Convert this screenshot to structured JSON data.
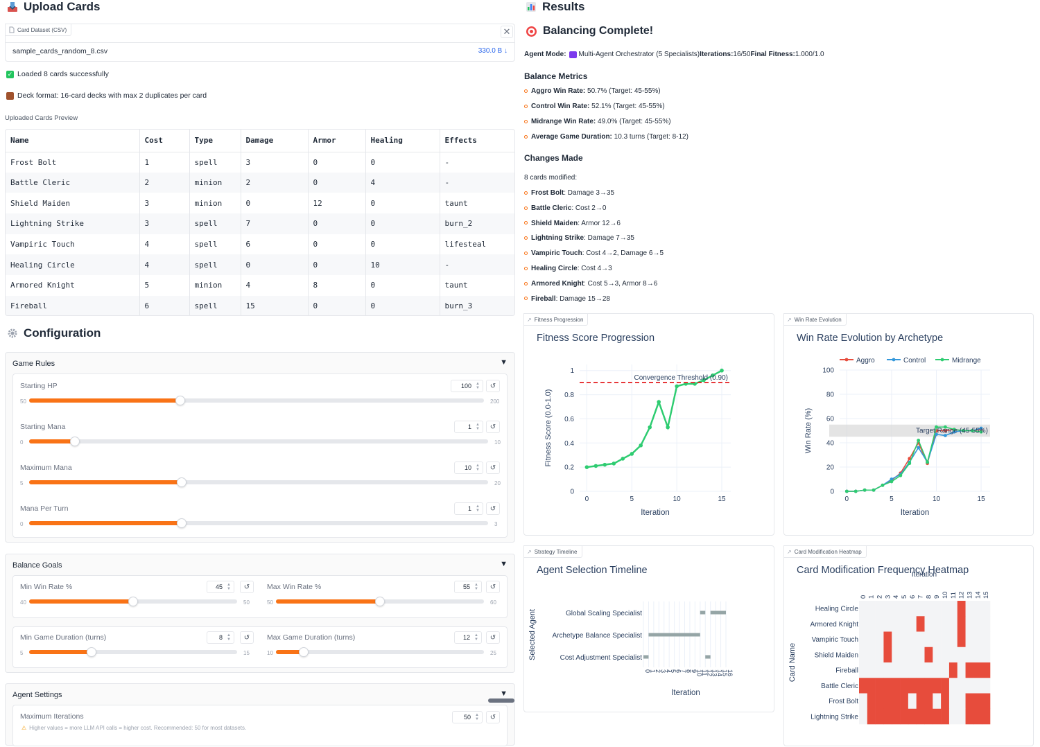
{
  "upload": {
    "title": "Upload Cards",
    "file_label": "Card Dataset (CSV)",
    "file_name": "sample_cards_random_8.csv",
    "file_size": "330.0 B ↓",
    "msg_loaded": "Loaded 8 cards successfully",
    "msg_format": "Deck format: 16-card decks with max 2 duplicates per card",
    "preview_label": "Uploaded Cards Preview",
    "columns": [
      "Name",
      "Cost",
      "Type",
      "Damage",
      "Armor",
      "Healing",
      "Effects"
    ],
    "rows": [
      [
        "Frost Bolt",
        "1",
        "spell",
        "3",
        "0",
        "0",
        "-"
      ],
      [
        "Battle Cleric",
        "2",
        "minion",
        "2",
        "0",
        "4",
        "-"
      ],
      [
        "Shield Maiden",
        "3",
        "minion",
        "0",
        "12",
        "0",
        "taunt"
      ],
      [
        "Lightning Strike",
        "3",
        "spell",
        "7",
        "0",
        "0",
        "burn_2"
      ],
      [
        "Vampiric Touch",
        "4",
        "spell",
        "6",
        "0",
        "0",
        "lifesteal"
      ],
      [
        "Healing Circle",
        "4",
        "spell",
        "0",
        "0",
        "10",
        "-"
      ],
      [
        "Armored Knight",
        "5",
        "minion",
        "4",
        "8",
        "0",
        "taunt"
      ],
      [
        "Fireball",
        "6",
        "spell",
        "15",
        "0",
        "0",
        "burn_3"
      ]
    ]
  },
  "config": {
    "title": "Configuration",
    "game_rules": {
      "title": "Game Rules",
      "sliders": [
        {
          "label": "Starting HP",
          "value": "100",
          "min": "50",
          "max": "200",
          "fraction": 0.333
        },
        {
          "label": "Starting Mana",
          "value": "1",
          "min": "0",
          "max": "10",
          "fraction": 0.1
        },
        {
          "label": "Maximum Mana",
          "value": "10",
          "min": "5",
          "max": "20",
          "fraction": 0.333
        },
        {
          "label": "Mana Per Turn",
          "value": "1",
          "min": "0",
          "max": "3",
          "fraction": 0.333
        }
      ]
    },
    "balance_goals": {
      "title": "Balance Goals",
      "sliders": [
        {
          "label": "Min Win Rate %",
          "value": "45",
          "min": "40",
          "max": "50",
          "fraction": 0.5
        },
        {
          "label": "Max Win Rate %",
          "value": "55",
          "min": "50",
          "max": "60",
          "fraction": 0.5
        },
        {
          "label": "Min Game Duration (turns)",
          "value": "8",
          "min": "5",
          "max": "15",
          "fraction": 0.3
        },
        {
          "label": "Max Game Duration (turns)",
          "value": "12",
          "min": "10",
          "max": "25",
          "fraction": 0.133
        }
      ]
    },
    "agent_settings": {
      "title": "Agent Settings",
      "max_iter_label": "Maximum Iterations",
      "max_iter_value": "50",
      "warning": "Higher values = more LLM API calls = higher cost. Recommended: 50 for most datasets."
    }
  },
  "results": {
    "title": "Results",
    "complete": "Balancing Complete!",
    "mode_line": [
      {
        "k": "Agent Mode:",
        "v": " Multi-Agent Orchestrator (5 Specialists) "
      },
      {
        "k": "Iterations:",
        "v": " 16/50 "
      },
      {
        "k": "Final Fitness:",
        "v": " 1.000/1.0"
      }
    ],
    "metrics_title": "Balance Metrics",
    "metrics": [
      {
        "k": "Aggro Win Rate:",
        "v": " 50.7% (Target: 45-55%)"
      },
      {
        "k": "Control Win Rate:",
        "v": " 52.1% (Target: 45-55%)"
      },
      {
        "k": "Midrange Win Rate:",
        "v": " 49.0% (Target: 45-55%)"
      },
      {
        "k": "Average Game Duration:",
        "v": " 10.3 turns (Target: 8-12)"
      }
    ],
    "changes_title": "Changes Made",
    "changes_count": "8 cards modified:",
    "changes": [
      {
        "k": "Frost Bolt",
        "v": ": Damage 3→35"
      },
      {
        "k": "Battle Cleric",
        "v": ": Cost 2→0"
      },
      {
        "k": "Shield Maiden",
        "v": ": Armor 12→6"
      },
      {
        "k": "Lightning Strike",
        "v": ": Damage 7→35"
      },
      {
        "k": "Vampiric Touch",
        "v": ": Cost 4→2, Damage 6→5"
      },
      {
        "k": "Healing Circle",
        "v": ": Cost 4→3"
      },
      {
        "k": "Armored Knight",
        "v": ": Cost 5→3, Armor 8→6"
      },
      {
        "k": "Fireball",
        "v": ": Damage 15→28"
      }
    ]
  },
  "plots": {
    "fitness_tag": "Fitness Progression",
    "winrate_tag": "Win Rate Evolution",
    "timeline_tag": "Strategy Timeline",
    "heatmap_tag": "Card Modification Heatmap"
  },
  "chart_data": [
    {
      "type": "line",
      "title": "Fitness Score Progression",
      "xlabel": "Iteration",
      "ylabel": "Fitness Score (0.0-1.0)",
      "x": [
        0,
        1,
        2,
        3,
        4,
        5,
        6,
        7,
        8,
        9,
        10,
        11,
        12,
        13,
        14,
        15
      ],
      "series": [
        {
          "values": [
            0.2,
            0.21,
            0.22,
            0.23,
            0.27,
            0.31,
            0.38,
            0.53,
            0.74,
            0.53,
            0.87,
            0.89,
            0.89,
            0.92,
            0.96,
            1.0
          ],
          "color": "#2ecc71"
        }
      ],
      "threshold": {
        "value": 0.9,
        "label": "Convergence Threshold (0.90)",
        "color": "#e41a1c"
      },
      "xlim": [
        -0.8,
        16
      ],
      "ylim": [
        0,
        1.05
      ],
      "xticks": [
        "0",
        "5",
        "10",
        "15"
      ],
      "yticks": [
        "0",
        "0.2",
        "0.4",
        "0.6",
        "0.8",
        "1"
      ]
    },
    {
      "type": "line",
      "title": "Win Rate Evolution by Archetype",
      "xlabel": "Iteration",
      "ylabel": "Win Rate (%)",
      "x": [
        0,
        1,
        2,
        3,
        4,
        5,
        6,
        7,
        8,
        9,
        10,
        11,
        12,
        13,
        14,
        15
      ],
      "series": [
        {
          "name": "Aggro",
          "color": "#e74c3c",
          "values": [
            0,
            0,
            1,
            1,
            5,
            9,
            15,
            27,
            40,
            23,
            50,
            50,
            51,
            50,
            50,
            51
          ]
        },
        {
          "name": "Control",
          "color": "#3498db",
          "values": [
            0,
            0,
            1,
            1,
            5,
            10,
            14,
            24,
            36,
            24,
            47,
            46,
            49,
            50,
            50,
            52
          ]
        },
        {
          "name": "Midrange",
          "color": "#2ecc71",
          "values": [
            0,
            0,
            1,
            1,
            5,
            8,
            13,
            23,
            42,
            24,
            53,
            53,
            51,
            50,
            50,
            49
          ]
        }
      ],
      "band": {
        "from": 45,
        "to": 55,
        "label": "Target Range (45-55%)"
      },
      "xlim": [
        -0.8,
        16
      ],
      "ylim": [
        0,
        100
      ],
      "xticks": [
        "0",
        "5",
        "10",
        "15"
      ],
      "yticks": [
        "0",
        "20",
        "40",
        "60",
        "80",
        "100"
      ]
    },
    {
      "type": "bar",
      "title": "Agent Selection Timeline",
      "xlabel": "Iteration",
      "ylabel": "Selected Agent",
      "categories": [
        "Cost Adjustment Specialist",
        "Archetype Balance Specialist",
        "Global Scaling Specialist"
      ],
      "xticks": [
        "0",
        "1",
        "2",
        "3",
        "4",
        "5",
        "6",
        "7",
        "8",
        "9",
        "10",
        "11",
        "12",
        "13",
        "14",
        "15",
        "16"
      ],
      "segments": [
        {
          "agent": "Cost Adjustment Specialist",
          "from": 0,
          "to": 1
        },
        {
          "agent": "Archetype Balance Specialist",
          "from": 1,
          "to": 11
        },
        {
          "agent": "Global Scaling Specialist",
          "from": 11,
          "to": 12
        },
        {
          "agent": "Cost Adjustment Specialist",
          "from": 12,
          "to": 13
        },
        {
          "agent": "Global Scaling Specialist",
          "from": 13,
          "to": 16
        }
      ]
    },
    {
      "type": "heatmap",
      "title": "Card Modification Frequency Heatmap",
      "xlabel": "Iteration",
      "ylabel": "Card Name",
      "x": [
        "0",
        "1",
        "2",
        "3",
        "4",
        "5",
        "6",
        "7",
        "8",
        "9",
        "10",
        "11",
        "12",
        "13",
        "14",
        "15"
      ],
      "y": [
        "Healing Circle",
        "Armored Knight",
        "Vampiric Touch",
        "Shield Maiden",
        "Fireball",
        "Battle Cleric",
        "Frost Bolt",
        "Lightning Strike"
      ],
      "z": [
        [
          0,
          0,
          0,
          0,
          0,
          0,
          0,
          0,
          0,
          0,
          0,
          0,
          1,
          0,
          0,
          0
        ],
        [
          0,
          0,
          0,
          0,
          0,
          0,
          0,
          1,
          0,
          0,
          0,
          0,
          1,
          0,
          0,
          0
        ],
        [
          0,
          0,
          0,
          1,
          0,
          0,
          0,
          0,
          0,
          0,
          0,
          0,
          1,
          0,
          0,
          0
        ],
        [
          0,
          0,
          0,
          1,
          0,
          0,
          0,
          0,
          1,
          0,
          0,
          0,
          0,
          0,
          0,
          0
        ],
        [
          0,
          0,
          0,
          0,
          0,
          0,
          0,
          0,
          0,
          0,
          0,
          1,
          0,
          1,
          1,
          1
        ],
        [
          1,
          1,
          1,
          1,
          1,
          1,
          1,
          1,
          1,
          1,
          1,
          0,
          0,
          0,
          0,
          0
        ],
        [
          0,
          1,
          1,
          1,
          1,
          1,
          0,
          1,
          1,
          0,
          1,
          0,
          0,
          1,
          1,
          1
        ],
        [
          0,
          1,
          1,
          1,
          1,
          1,
          1,
          1,
          1,
          1,
          1,
          0,
          0,
          1,
          1,
          1
        ]
      ],
      "colors": {
        "on": "#e74c3c",
        "off": "#f3f4f6"
      }
    }
  ]
}
